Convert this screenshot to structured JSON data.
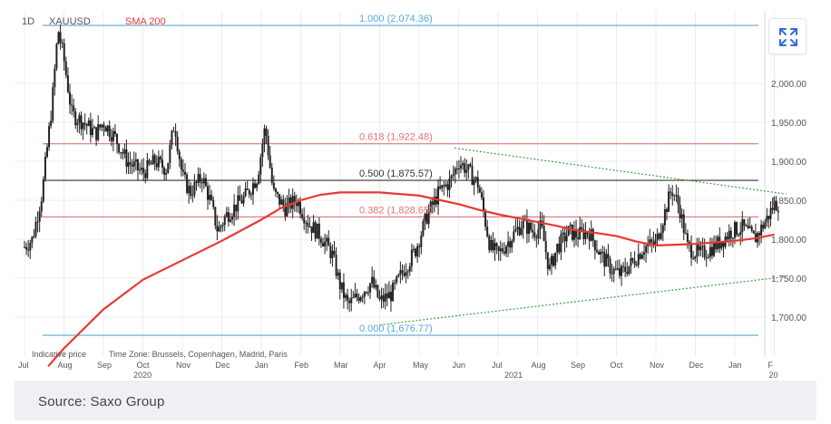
{
  "header": {
    "interval": "1D",
    "symbol": "XAUUSD",
    "indicator": "SMA 200"
  },
  "footer": {
    "source": "Source: Saxo Group"
  },
  "chart_notes": {
    "indicative_price": "Indicative price",
    "time_zone": "Time Zone: Brussels, Copenhagen, Madrid, Paris"
  },
  "icons": {
    "expand": "expand-icon"
  },
  "colors": {
    "candles": "#222222",
    "sma": "#e53935",
    "fib_extreme": "#5aa9d6",
    "fib_mid": "#e57373",
    "fib_half": "#333333",
    "trendline": "#43a047"
  },
  "chart_data": {
    "type": "candlestick",
    "title": "",
    "symbol": "XAUUSD",
    "interval": "1D",
    "ylim": [
      1640,
      2100
    ],
    "y_ticks": [
      {
        "value": 1700,
        "label": "1,700.00"
      },
      {
        "value": 1750,
        "label": "1,750.00"
      },
      {
        "value": 1800,
        "label": "1,800.00"
      },
      {
        "value": 1850,
        "label": "1,850.00"
      },
      {
        "value": 1900,
        "label": "1,900.00"
      },
      {
        "value": 1950,
        "label": "1,950.00"
      },
      {
        "value": 2000,
        "label": "2,000.00"
      }
    ],
    "x_ticks": [
      {
        "label": "Jul",
        "t": 0
      },
      {
        "label": "Aug",
        "t": 1
      },
      {
        "label": "Sep",
        "t": 2
      },
      {
        "label": "Oct",
        "t": 3
      },
      {
        "label": "Nov",
        "t": 4
      },
      {
        "label": "Dec",
        "t": 5
      },
      {
        "label": "Jan",
        "t": 6
      },
      {
        "label": "Feb",
        "t": 7
      },
      {
        "label": "Mar",
        "t": 8
      },
      {
        "label": "Apr",
        "t": 9
      },
      {
        "label": "May",
        "t": 10
      },
      {
        "label": "Jun",
        "t": 11
      },
      {
        "label": "Jul",
        "t": 12
      },
      {
        "label": "Aug",
        "t": 13
      },
      {
        "label": "Sep",
        "t": 14
      },
      {
        "label": "Oct",
        "t": 15
      },
      {
        "label": "Nov",
        "t": 16
      },
      {
        "label": "Dec",
        "t": 17
      },
      {
        "label": "Jan",
        "t": 18
      },
      {
        "label": "F",
        "t": 19
      }
    ],
    "year_labels": [
      {
        "label": "2020",
        "t": 2.9
      },
      {
        "label": "2021",
        "t": 12.3
      },
      {
        "label": "20",
        "t": 19
      }
    ],
    "fib_levels": [
      {
        "label": "1.000 (2,074.36)",
        "value": 2074.36,
        "kind": "extreme"
      },
      {
        "label": "0.618 (1,922.48)",
        "value": 1922.48,
        "kind": "mid"
      },
      {
        "label": "0.500 (1,875.57)",
        "value": 1875.57,
        "kind": "half"
      },
      {
        "label": "0.382 (1,828.65)",
        "value": 1828.65,
        "kind": "mid"
      },
      {
        "label": "0.000 (1,676.77)",
        "value": 1676.77,
        "kind": "extreme"
      }
    ],
    "trendlines": [
      {
        "name": "upper",
        "points": [
          [
            10.9,
            1917
          ],
          [
            19.3,
            1858
          ]
        ]
      },
      {
        "name": "lower",
        "points": [
          [
            9.0,
            1690
          ],
          [
            19.3,
            1752
          ]
        ]
      }
    ],
    "sma_200": [
      [
        0.6,
        1637
      ],
      [
        1.0,
        1660
      ],
      [
        2.0,
        1710
      ],
      [
        3.0,
        1748
      ],
      [
        4.0,
        1773
      ],
      [
        5.0,
        1798
      ],
      [
        6.0,
        1825
      ],
      [
        6.5,
        1840
      ],
      [
        7.0,
        1850
      ],
      [
        7.5,
        1857
      ],
      [
        8.0,
        1860
      ],
      [
        9.0,
        1860
      ],
      [
        10.0,
        1856
      ],
      [
        11.0,
        1845
      ],
      [
        11.5,
        1838
      ],
      [
        12.0,
        1832
      ],
      [
        12.5,
        1827
      ],
      [
        13.0,
        1822
      ],
      [
        13.5,
        1817
      ],
      [
        14.0,
        1811
      ],
      [
        14.5,
        1808
      ],
      [
        15.0,
        1804
      ],
      [
        15.5,
        1797
      ],
      [
        16.0,
        1792
      ],
      [
        16.5,
        1793
      ],
      [
        17.0,
        1794
      ],
      [
        17.5,
        1796
      ],
      [
        18.0,
        1798
      ],
      [
        18.5,
        1801
      ],
      [
        19.0,
        1806
      ]
    ],
    "price_anchors": [
      [
        0.0,
        1790
      ],
      [
        0.2,
        1800
      ],
      [
        0.45,
        1860
      ],
      [
        0.7,
        1975
      ],
      [
        0.85,
        2070
      ],
      [
        1.0,
        2030
      ],
      [
        1.2,
        1960
      ],
      [
        1.5,
        1950
      ],
      [
        1.8,
        1935
      ],
      [
        2.0,
        1950
      ],
      [
        2.3,
        1930
      ],
      [
        2.6,
        1900
      ],
      [
        3.0,
        1885
      ],
      [
        3.3,
        1900
      ],
      [
        3.6,
        1890
      ],
      [
        3.8,
        1950
      ],
      [
        4.0,
        1880
      ],
      [
        4.2,
        1860
      ],
      [
        4.5,
        1880
      ],
      [
        4.7,
        1850
      ],
      [
        4.9,
        1810
      ],
      [
        5.1,
        1830
      ],
      [
        5.3,
        1840
      ],
      [
        5.6,
        1855
      ],
      [
        5.9,
        1880
      ],
      [
        6.1,
        1945
      ],
      [
        6.3,
        1860
      ],
      [
        6.6,
        1840
      ],
      [
        6.9,
        1850
      ],
      [
        7.2,
        1820
      ],
      [
        7.5,
        1805
      ],
      [
        7.8,
        1780
      ],
      [
        8.0,
        1740
      ],
      [
        8.2,
        1715
      ],
      [
        8.5,
        1730
      ],
      [
        8.8,
        1745
      ],
      [
        9.0,
        1720
      ],
      [
        9.3,
        1730
      ],
      [
        9.6,
        1760
      ],
      [
        9.9,
        1785
      ],
      [
        10.2,
        1830
      ],
      [
        10.5,
        1860
      ],
      [
        10.8,
        1875
      ],
      [
        11.0,
        1900
      ],
      [
        11.2,
        1890
      ],
      [
        11.5,
        1870
      ],
      [
        11.8,
        1790
      ],
      [
        12.0,
        1780
      ],
      [
        12.3,
        1800
      ],
      [
        12.6,
        1820
      ],
      [
        12.9,
        1810
      ],
      [
        13.1,
        1815
      ],
      [
        13.3,
        1760
      ],
      [
        13.5,
        1790
      ],
      [
        13.8,
        1810
      ],
      [
        14.0,
        1805
      ],
      [
        14.3,
        1810
      ],
      [
        14.6,
        1780
      ],
      [
        14.9,
        1760
      ],
      [
        15.1,
        1755
      ],
      [
        15.4,
        1770
      ],
      [
        15.7,
        1790
      ],
      [
        16.0,
        1795
      ],
      [
        16.2,
        1830
      ],
      [
        16.4,
        1865
      ],
      [
        16.6,
        1840
      ],
      [
        16.8,
        1790
      ],
      [
        17.1,
        1780
      ],
      [
        17.3,
        1785
      ],
      [
        17.6,
        1795
      ],
      [
        17.9,
        1810
      ],
      [
        18.2,
        1815
      ],
      [
        18.5,
        1800
      ],
      [
        18.8,
        1825
      ],
      [
        19.0,
        1845
      ]
    ]
  }
}
